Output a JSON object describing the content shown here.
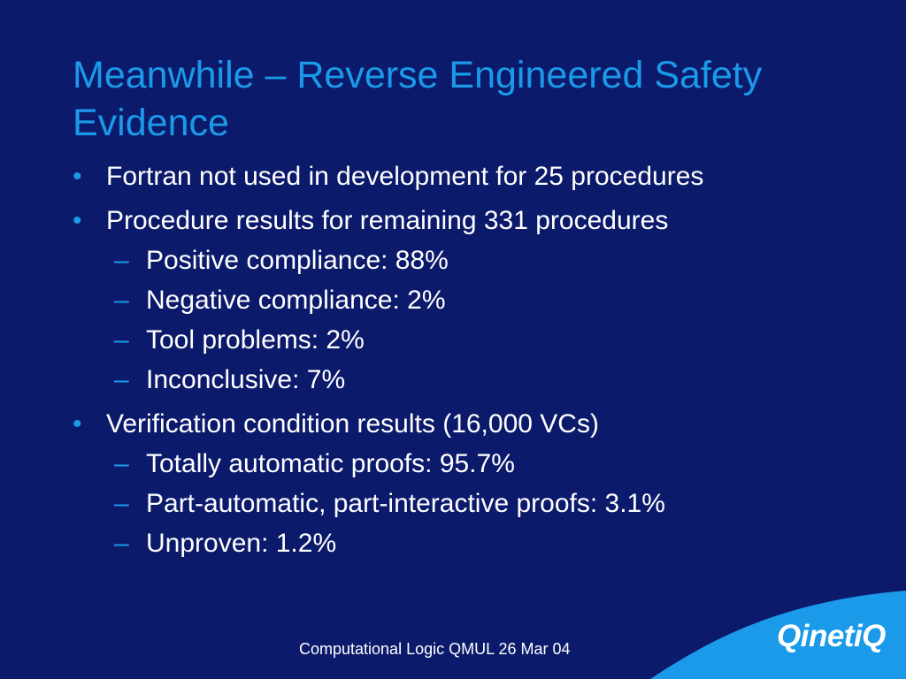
{
  "slide": {
    "title": "Meanwhile – Reverse Engineered Safety Evidence",
    "bullets": [
      {
        "text": "Fortran not used in development for 25 procedures",
        "subitems": []
      },
      {
        "text": "Procedure results for remaining 331 procedures",
        "subitems": [
          "Positive compliance: 88%",
          "Negative compliance: 2%",
          "Tool problems: 2%",
          "Inconclusive: 7%"
        ]
      },
      {
        "text": "Verification condition results (16,000 VCs)",
        "subitems": [
          "Totally automatic proofs: 95.7%",
          "Part-automatic, part-interactive proofs: 3.1%",
          "Unproven: 1.2%"
        ]
      }
    ],
    "bullet_glyph": "•",
    "sub_bullet_glyph": "–",
    "footer": "Computational Logic QMUL 26 Mar 04",
    "logo": "QinetiQ"
  },
  "colors": {
    "background": "#0c1a6b",
    "title": "#1a9ae8",
    "text": "#ffffff",
    "bullet": "#1a9ae8",
    "sub_bullet": "#1a9ae8",
    "logo_wave": "#1a9ae8",
    "logo_text": "#ffffff"
  }
}
